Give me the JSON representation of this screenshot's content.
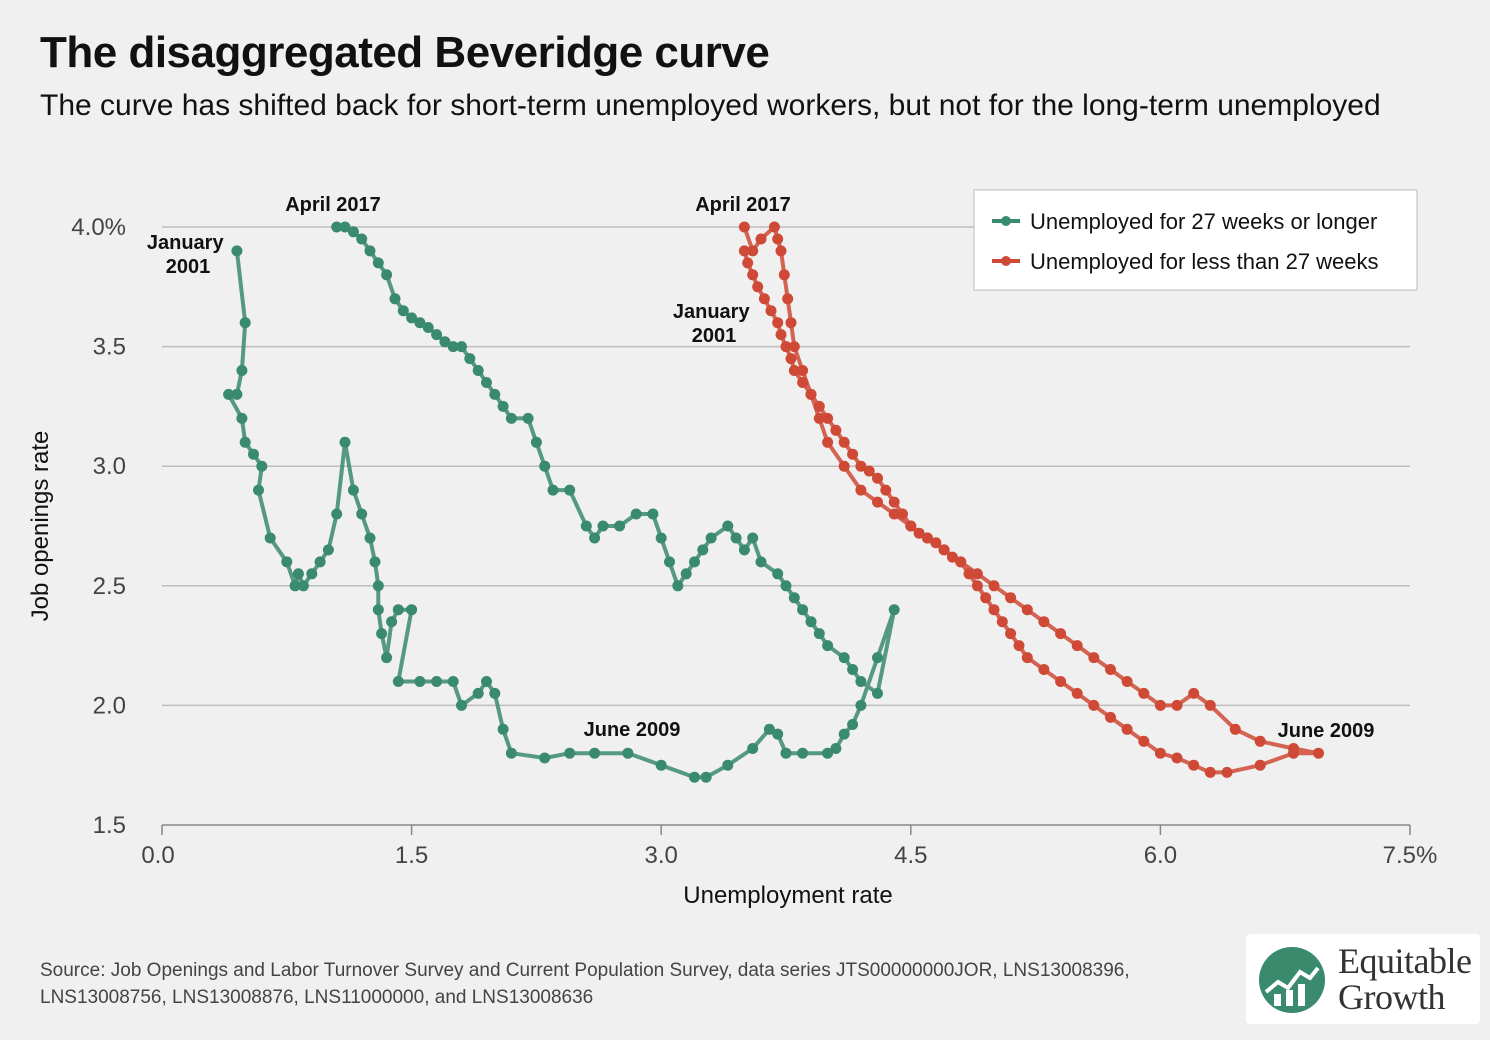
{
  "title": "The disaggregated Beveridge curve",
  "subtitle": "The curve has shifted back for short-term unemployed workers, but not for the long-term unemployed",
  "source": "Source: Job Openings and Labor Turnover Survey and Current Population Survey, data series JTS00000000JOR, LNS13008396, LNS13008756, LNS13008876, LNS11000000, and LNS13008636",
  "logo": {
    "line1": "Equitable",
    "line2": "Growth"
  },
  "colors": {
    "long_term": "#3a8a6e",
    "short_term": "#cf4a36",
    "grid": "#bdbdbd",
    "background": "#f0f0f0"
  },
  "chart_data": {
    "type": "line",
    "xlabel": "Unemployment rate",
    "ylabel": "Job openings rate",
    "xlim": [
      0,
      7.5
    ],
    "ylim": [
      1.5,
      4.0
    ],
    "xticks": [
      "0.0",
      "1.5",
      "3.0",
      "4.5",
      "6.0",
      "7.5%"
    ],
    "yticks": [
      "1.5",
      "2.0",
      "2.5",
      "3.0",
      "3.5",
      "4.0%"
    ],
    "grid": "horizontal",
    "legend_position": "top-right",
    "series": [
      {
        "name": "Unemployed for 27 weeks or longer",
        "color": "#3a8a6e",
        "points": [
          [
            0.45,
            3.9
          ],
          [
            0.5,
            3.6
          ],
          [
            0.48,
            3.4
          ],
          [
            0.45,
            3.3
          ],
          [
            0.4,
            3.3
          ],
          [
            0.48,
            3.2
          ],
          [
            0.5,
            3.1
          ],
          [
            0.55,
            3.05
          ],
          [
            0.6,
            3.0
          ],
          [
            0.58,
            2.9
          ],
          [
            0.65,
            2.7
          ],
          [
            0.75,
            2.6
          ],
          [
            0.8,
            2.5
          ],
          [
            0.82,
            2.55
          ],
          [
            0.85,
            2.5
          ],
          [
            0.9,
            2.55
          ],
          [
            0.95,
            2.6
          ],
          [
            1.0,
            2.65
          ],
          [
            1.05,
            2.8
          ],
          [
            1.1,
            3.1
          ],
          [
            1.15,
            2.9
          ],
          [
            1.2,
            2.8
          ],
          [
            1.25,
            2.7
          ],
          [
            1.28,
            2.6
          ],
          [
            1.3,
            2.5
          ],
          [
            1.3,
            2.4
          ],
          [
            1.32,
            2.3
          ],
          [
            1.35,
            2.2
          ],
          [
            1.38,
            2.35
          ],
          [
            1.42,
            2.4
          ],
          [
            1.5,
            2.4
          ],
          [
            1.42,
            2.1
          ],
          [
            1.55,
            2.1
          ],
          [
            1.65,
            2.1
          ],
          [
            1.75,
            2.1
          ],
          [
            1.8,
            2.0
          ],
          [
            1.9,
            2.05
          ],
          [
            1.95,
            2.1
          ],
          [
            2.0,
            2.05
          ],
          [
            2.05,
            1.9
          ],
          [
            2.1,
            1.8
          ],
          [
            2.3,
            1.78
          ],
          [
            2.45,
            1.8
          ],
          [
            2.6,
            1.8
          ],
          [
            2.8,
            1.8
          ],
          [
            3.0,
            1.75
          ],
          [
            3.2,
            1.7
          ],
          [
            3.27,
            1.7
          ],
          [
            3.4,
            1.75
          ],
          [
            3.55,
            1.82
          ],
          [
            3.65,
            1.9
          ],
          [
            3.7,
            1.88
          ],
          [
            3.75,
            1.8
          ],
          [
            3.85,
            1.8
          ],
          [
            4.0,
            1.8
          ],
          [
            4.05,
            1.82
          ],
          [
            4.1,
            1.88
          ],
          [
            4.15,
            1.92
          ],
          [
            4.2,
            2.0
          ],
          [
            4.3,
            2.2
          ],
          [
            4.4,
            2.4
          ],
          [
            4.3,
            2.05
          ],
          [
            4.2,
            2.1
          ],
          [
            4.15,
            2.15
          ],
          [
            4.1,
            2.2
          ],
          [
            4.0,
            2.25
          ],
          [
            3.95,
            2.3
          ],
          [
            3.9,
            2.35
          ],
          [
            3.85,
            2.4
          ],
          [
            3.8,
            2.45
          ],
          [
            3.75,
            2.5
          ],
          [
            3.7,
            2.55
          ],
          [
            3.6,
            2.6
          ],
          [
            3.55,
            2.7
          ],
          [
            3.5,
            2.65
          ],
          [
            3.45,
            2.7
          ],
          [
            3.4,
            2.75
          ],
          [
            3.3,
            2.7
          ],
          [
            3.25,
            2.65
          ],
          [
            3.2,
            2.6
          ],
          [
            3.15,
            2.55
          ],
          [
            3.1,
            2.5
          ],
          [
            3.05,
            2.6
          ],
          [
            3.0,
            2.7
          ],
          [
            2.95,
            2.8
          ],
          [
            2.85,
            2.8
          ],
          [
            2.75,
            2.75
          ],
          [
            2.65,
            2.75
          ],
          [
            2.6,
            2.7
          ],
          [
            2.55,
            2.75
          ],
          [
            2.45,
            2.9
          ],
          [
            2.35,
            2.9
          ],
          [
            2.3,
            3.0
          ],
          [
            2.25,
            3.1
          ],
          [
            2.2,
            3.2
          ],
          [
            2.1,
            3.2
          ],
          [
            2.05,
            3.25
          ],
          [
            2.0,
            3.3
          ],
          [
            1.95,
            3.35
          ],
          [
            1.9,
            3.4
          ],
          [
            1.85,
            3.45
          ],
          [
            1.8,
            3.5
          ],
          [
            1.75,
            3.5
          ],
          [
            1.7,
            3.52
          ],
          [
            1.65,
            3.55
          ],
          [
            1.6,
            3.58
          ],
          [
            1.55,
            3.6
          ],
          [
            1.5,
            3.62
          ],
          [
            1.45,
            3.65
          ],
          [
            1.4,
            3.7
          ],
          [
            1.35,
            3.8
          ],
          [
            1.3,
            3.85
          ],
          [
            1.25,
            3.9
          ],
          [
            1.2,
            3.95
          ],
          [
            1.15,
            3.98
          ],
          [
            1.1,
            4.0
          ],
          [
            1.05,
            4.0
          ]
        ]
      },
      {
        "name": "Unemployed for less than 27 weeks",
        "color": "#cf4a36",
        "points": [
          [
            3.5,
            3.9
          ],
          [
            3.52,
            3.85
          ],
          [
            3.55,
            3.8
          ],
          [
            3.58,
            3.75
          ],
          [
            3.62,
            3.7
          ],
          [
            3.66,
            3.65
          ],
          [
            3.7,
            3.6
          ],
          [
            3.72,
            3.55
          ],
          [
            3.75,
            3.5
          ],
          [
            3.78,
            3.45
          ],
          [
            3.8,
            3.4
          ],
          [
            3.85,
            3.35
          ],
          [
            3.9,
            3.3
          ],
          [
            3.95,
            3.25
          ],
          [
            4.0,
            3.2
          ],
          [
            4.05,
            3.15
          ],
          [
            4.1,
            3.1
          ],
          [
            4.15,
            3.05
          ],
          [
            4.2,
            3.0
          ],
          [
            4.25,
            2.98
          ],
          [
            4.3,
            2.95
          ],
          [
            4.35,
            2.9
          ],
          [
            4.4,
            2.85
          ],
          [
            4.45,
            2.8
          ],
          [
            4.5,
            2.75
          ],
          [
            4.55,
            2.72
          ],
          [
            4.6,
            2.7
          ],
          [
            4.65,
            2.68
          ],
          [
            4.7,
            2.65
          ],
          [
            4.75,
            2.62
          ],
          [
            4.8,
            2.6
          ],
          [
            4.85,
            2.55
          ],
          [
            4.9,
            2.5
          ],
          [
            4.95,
            2.45
          ],
          [
            5.0,
            2.4
          ],
          [
            5.05,
            2.35
          ],
          [
            5.1,
            2.3
          ],
          [
            5.15,
            2.25
          ],
          [
            5.2,
            2.2
          ],
          [
            5.3,
            2.15
          ],
          [
            5.4,
            2.1
          ],
          [
            5.5,
            2.05
          ],
          [
            5.6,
            2.0
          ],
          [
            5.7,
            1.95
          ],
          [
            5.8,
            1.9
          ],
          [
            5.9,
            1.85
          ],
          [
            6.0,
            1.8
          ],
          [
            6.1,
            1.78
          ],
          [
            6.2,
            1.75
          ],
          [
            6.3,
            1.72
          ],
          [
            6.4,
            1.72
          ],
          [
            6.6,
            1.75
          ],
          [
            6.8,
            1.8
          ],
          [
            6.95,
            1.8
          ],
          [
            6.8,
            1.82
          ],
          [
            6.6,
            1.85
          ],
          [
            6.45,
            1.9
          ],
          [
            6.3,
            2.0
          ],
          [
            6.2,
            2.05
          ],
          [
            6.1,
            2.0
          ],
          [
            6.0,
            2.0
          ],
          [
            5.9,
            2.05
          ],
          [
            5.8,
            2.1
          ],
          [
            5.7,
            2.15
          ],
          [
            5.6,
            2.2
          ],
          [
            5.5,
            2.25
          ],
          [
            5.4,
            2.3
          ],
          [
            5.3,
            2.35
          ],
          [
            5.2,
            2.4
          ],
          [
            5.1,
            2.45
          ],
          [
            5.0,
            2.5
          ],
          [
            4.9,
            2.55
          ],
          [
            4.8,
            2.6
          ],
          [
            4.7,
            2.65
          ],
          [
            4.6,
            2.7
          ],
          [
            4.5,
            2.75
          ],
          [
            4.4,
            2.8
          ],
          [
            4.3,
            2.85
          ],
          [
            4.2,
            2.9
          ],
          [
            4.1,
            3.0
          ],
          [
            4.0,
            3.1
          ],
          [
            3.95,
            3.2
          ],
          [
            3.9,
            3.3
          ],
          [
            3.85,
            3.4
          ],
          [
            3.8,
            3.5
          ],
          [
            3.78,
            3.6
          ],
          [
            3.76,
            3.7
          ],
          [
            3.74,
            3.8
          ],
          [
            3.72,
            3.9
          ],
          [
            3.7,
            3.95
          ],
          [
            3.68,
            4.0
          ],
          [
            3.6,
            3.95
          ],
          [
            3.55,
            3.9
          ],
          [
            3.5,
            4.0
          ]
        ]
      }
    ],
    "annotations": [
      {
        "text": "April 2017",
        "series": 0
      },
      {
        "text": "January 2001",
        "series": 0
      },
      {
        "text": "June 2009",
        "series": 0
      },
      {
        "text": "April 2017",
        "series": 1
      },
      {
        "text": "January 2001",
        "series": 1
      },
      {
        "text": "June 2009",
        "series": 1
      }
    ]
  }
}
